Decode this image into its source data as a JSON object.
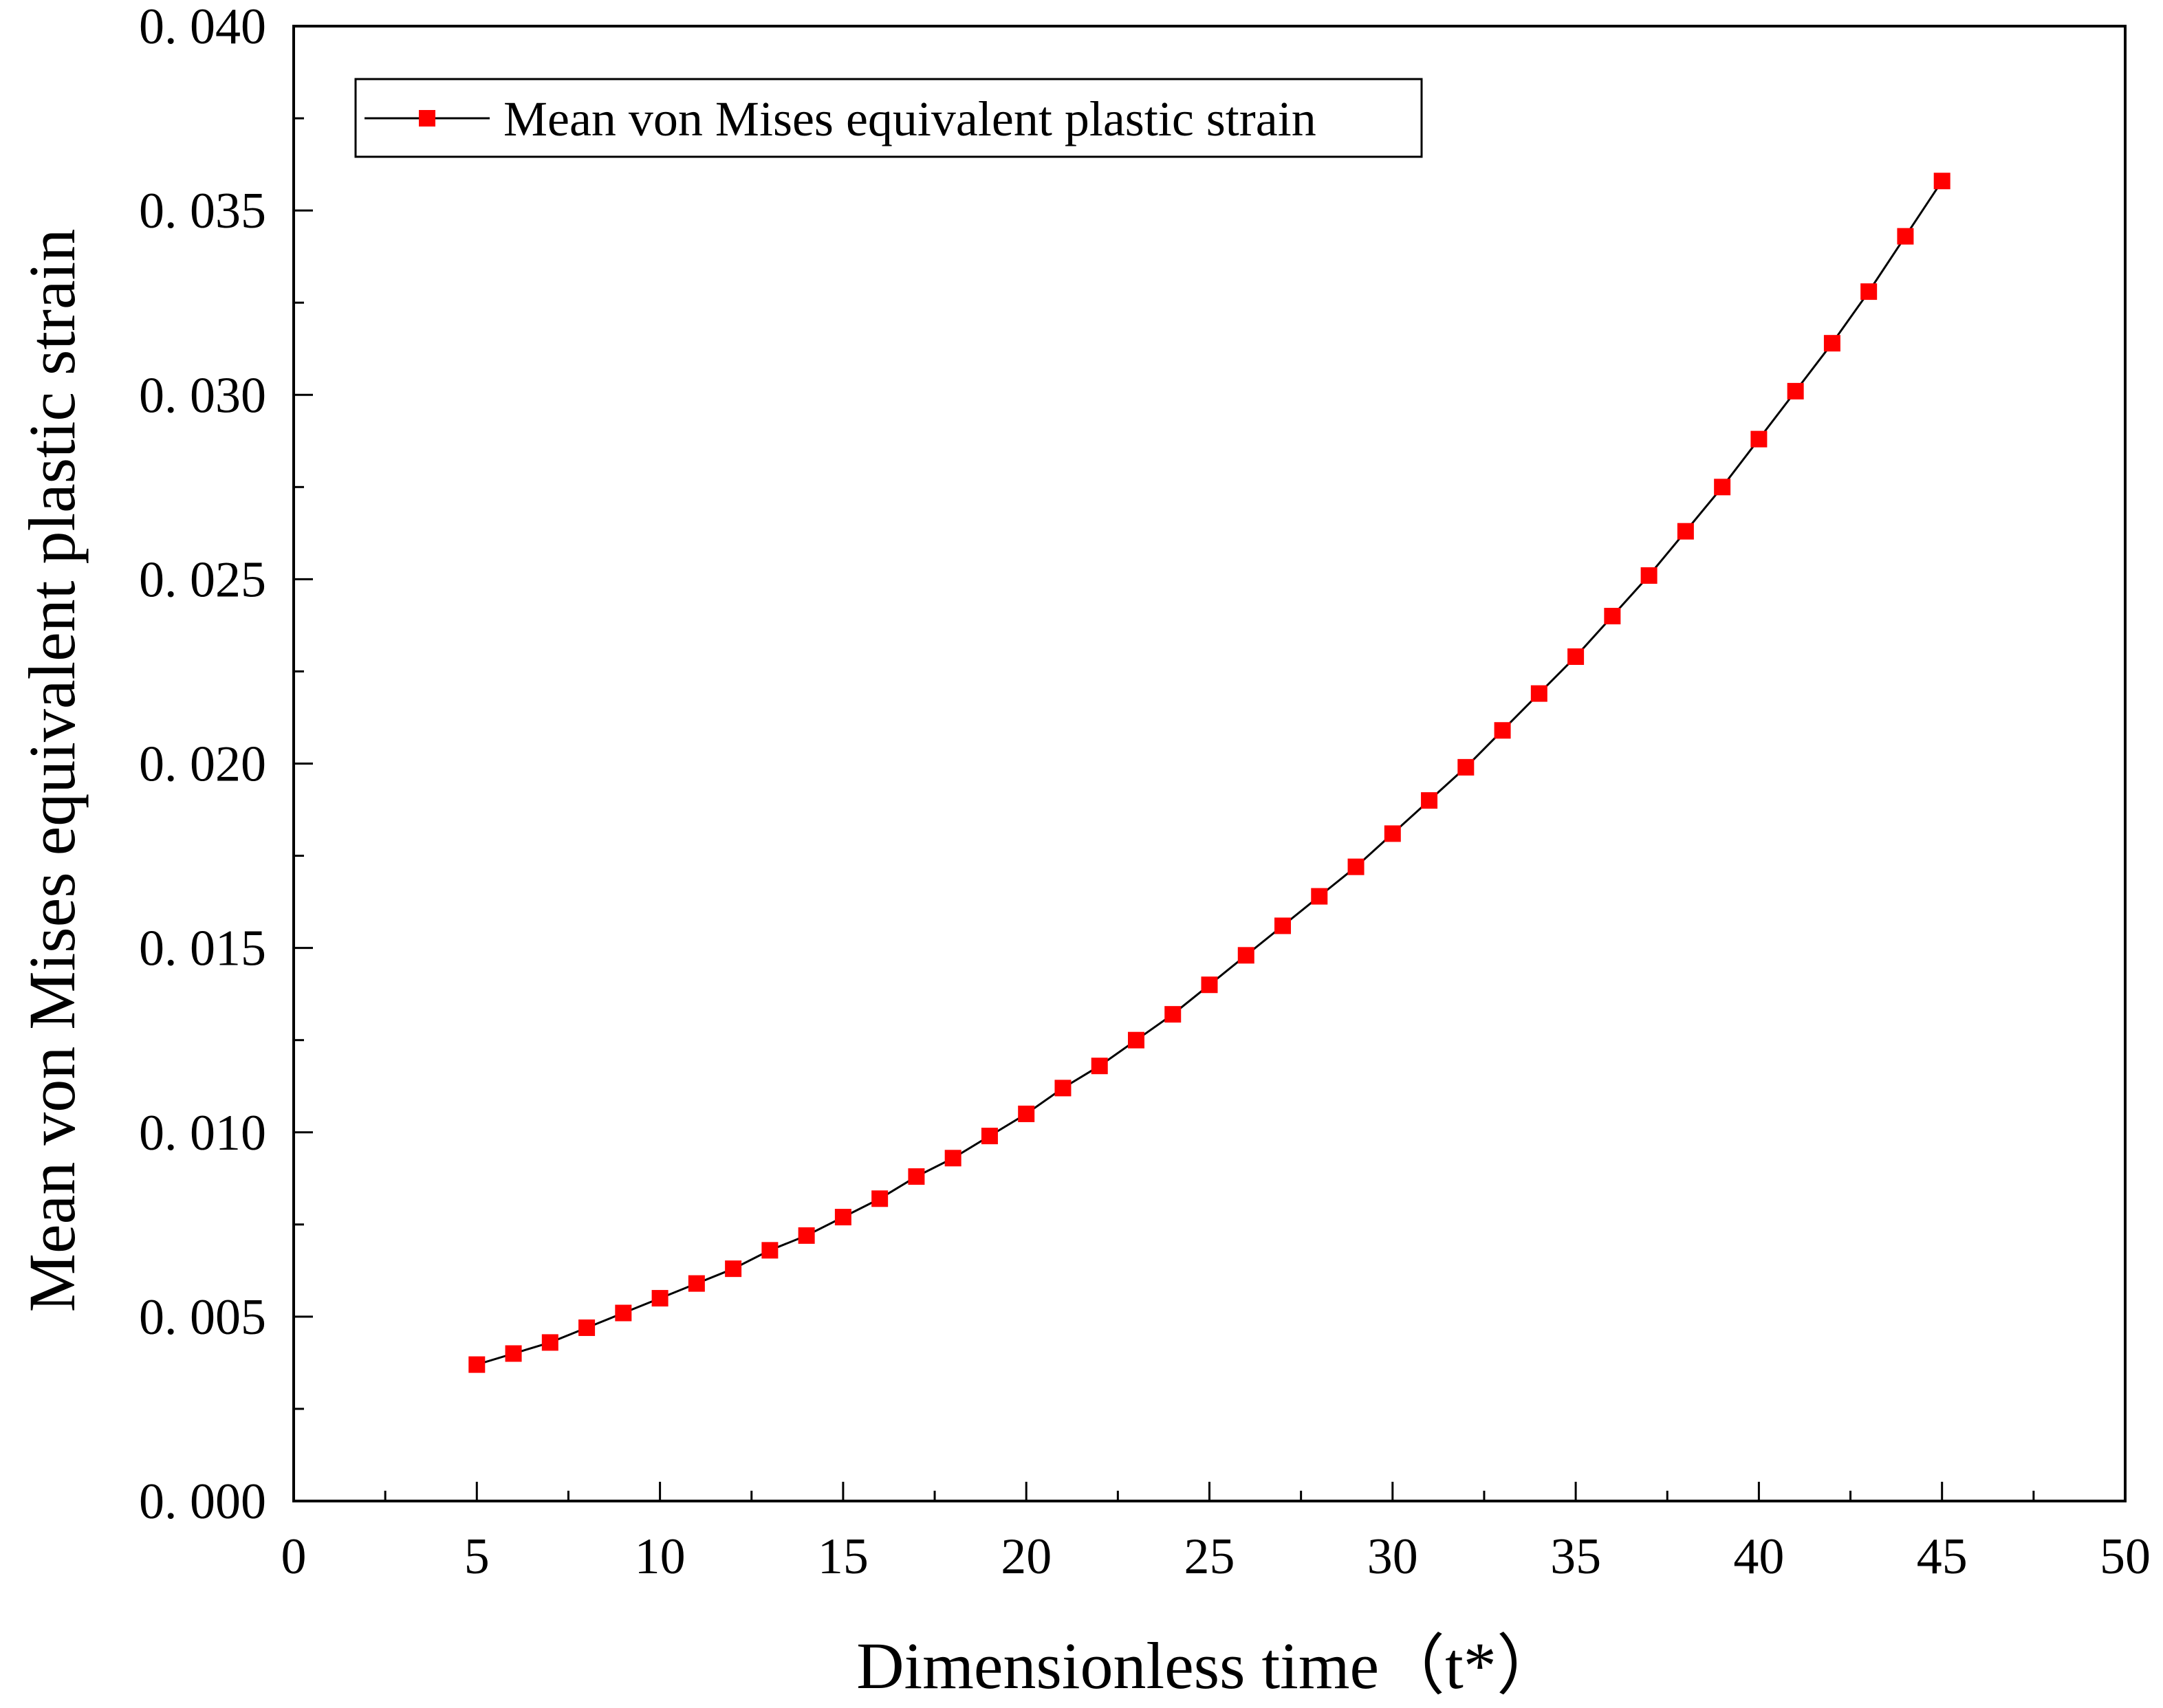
{
  "chart_data": {
    "type": "line",
    "title": "",
    "xlabel": "Dimensionless time（t*）",
    "ylabel": "Mean von Mises equivalent plastic strain",
    "xlim": [
      0,
      50
    ],
    "ylim": [
      0,
      0.04
    ],
    "x_ticks": [
      0,
      5,
      10,
      15,
      20,
      25,
      30,
      35,
      40,
      45,
      50
    ],
    "x_tick_labels": [
      "0",
      "5",
      "10",
      "15",
      "20",
      "25",
      "30",
      "35",
      "40",
      "45",
      "50"
    ],
    "y_ticks": [
      0,
      0.005,
      0.01,
      0.015,
      0.02,
      0.025,
      0.03,
      0.035,
      0.04
    ],
    "y_tick_labels": [
      "0. 000",
      "0. 005",
      "0. 010",
      "0. 015",
      "0. 020",
      "0. 025",
      "0. 030",
      "0. 035",
      "0. 040"
    ],
    "grid": false,
    "legend_position": "top-left",
    "series": [
      {
        "name": "Mean von Mises equivalent plastic strain",
        "line_color": "#000000",
        "marker_color": "#ff0000",
        "marker": "square",
        "x": [
          5,
          6,
          7,
          8,
          9,
          10,
          11,
          12,
          13,
          14,
          15,
          16,
          17,
          18,
          19,
          20,
          21,
          22,
          23,
          24,
          25,
          26,
          27,
          28,
          29,
          30,
          31,
          32,
          33,
          34,
          35,
          36,
          37,
          38,
          39,
          40,
          41,
          42,
          43,
          44,
          45
        ],
        "values": [
          0.0037,
          0.004,
          0.0043,
          0.0047,
          0.0051,
          0.0055,
          0.0059,
          0.0063,
          0.0068,
          0.0072,
          0.0077,
          0.0082,
          0.0088,
          0.0093,
          0.0099,
          0.0105,
          0.0112,
          0.0118,
          0.0125,
          0.0132,
          0.014,
          0.0148,
          0.0156,
          0.0164,
          0.0172,
          0.0181,
          0.019,
          0.0199,
          0.0209,
          0.0219,
          0.0229,
          0.024,
          0.0251,
          0.0263,
          0.0275,
          0.0288,
          0.0301,
          0.0314,
          0.0328,
          0.0343,
          0.0358
        ]
      }
    ]
  }
}
